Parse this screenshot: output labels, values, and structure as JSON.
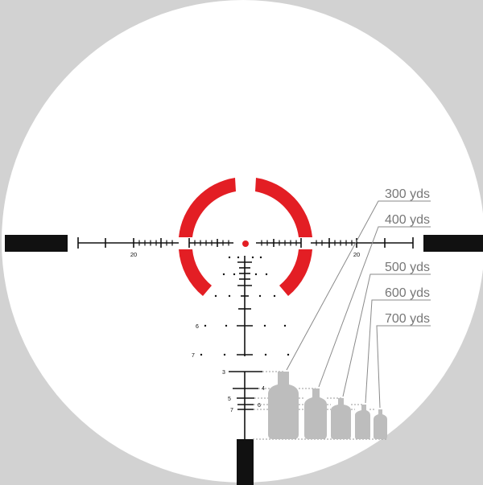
{
  "colors": {
    "background": "#d2d2d2",
    "lens": "#ffffff",
    "reticle": "#111111",
    "ring": "#e31e24",
    "target": "#bdbdbd",
    "label_text": "#777777",
    "leader_line": "#8a8a8a"
  },
  "crosshair": {
    "left_number": "20",
    "right_number": "20"
  },
  "holdover_labels": {
    "row_6": "6",
    "row_7": "7"
  },
  "ladder_labels": {
    "l3": "3",
    "l4": "4",
    "l5": "5",
    "l6": "6",
    "l7": "7"
  },
  "ranges": [
    {
      "label": "300 yds"
    },
    {
      "label": "400 yds"
    },
    {
      "label": "500 yds"
    },
    {
      "label": "600 yds"
    },
    {
      "label": "700 yds"
    }
  ]
}
